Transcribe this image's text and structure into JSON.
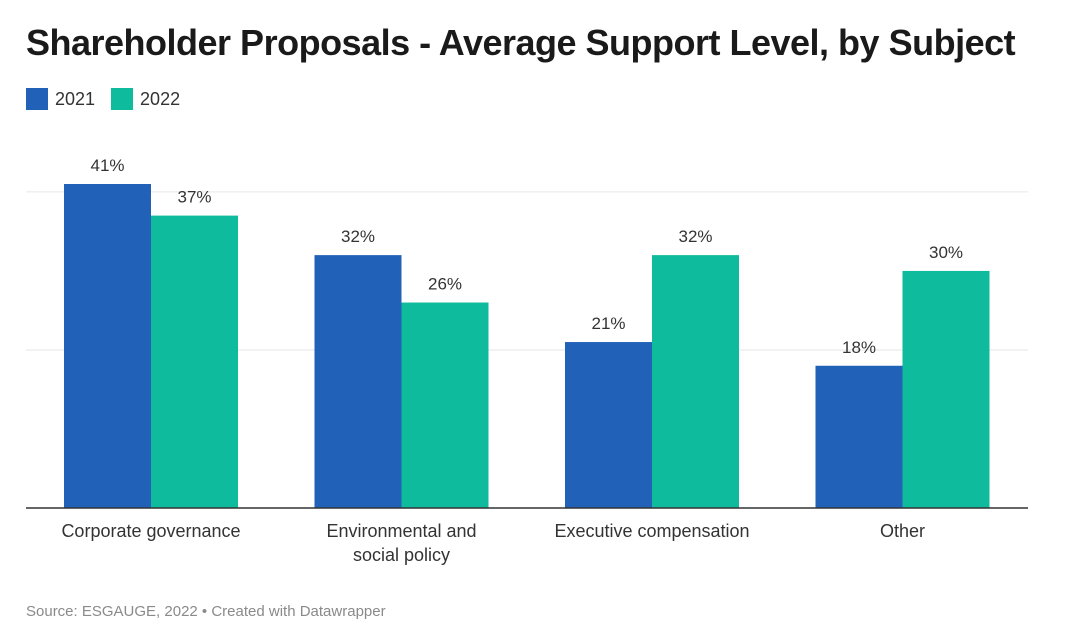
{
  "title": "Shareholder Proposals - Average Support Level, by Subject",
  "source": "Source: ESGAUGE, 2022 • Created with Datawrapper",
  "colors": {
    "s2021": "#2161b7",
    "s2022": "#0ebb9c",
    "grid": "#e6e6e6",
    "axis": "#333333"
  },
  "chart_data": {
    "type": "bar",
    "categories": [
      [
        "Corporate governance"
      ],
      [
        "Environmental and",
        "social policy"
      ],
      [
        "Executive compensation"
      ],
      [
        "Other"
      ]
    ],
    "series": [
      {
        "name": "2021",
        "values": [
          41,
          32,
          21,
          18
        ]
      },
      {
        "name": "2022",
        "values": [
          37,
          26,
          32,
          30
        ]
      }
    ],
    "value_labels": [
      [
        "41%",
        "32%",
        "21%",
        "18%"
      ],
      [
        "37%",
        "26%",
        "32%",
        "30%"
      ]
    ],
    "ylim": [
      0,
      41
    ],
    "gridlines": [
      20,
      40
    ],
    "grid": true,
    "legend": "top-left"
  }
}
